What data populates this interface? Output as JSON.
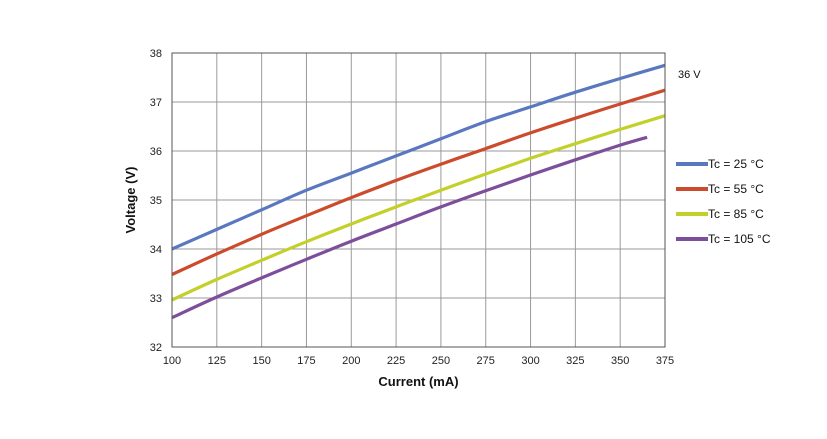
{
  "chart_data": {
    "type": "line",
    "title": "",
    "xlabel": "Current (mA)",
    "ylabel": "Voltage (V)",
    "xlim": [
      100,
      375
    ],
    "ylim": [
      32,
      38
    ],
    "xticks": [
      100,
      125,
      150,
      175,
      200,
      225,
      250,
      275,
      300,
      325,
      350,
      375
    ],
    "yticks": [
      32,
      33,
      34,
      35,
      36,
      37,
      38
    ],
    "grid": true,
    "legend_position": "right",
    "annotation": "36 V",
    "series": [
      {
        "name": "Tc = 25 °C",
        "color": "#5a78bf",
        "x": [
          100,
          125,
          150,
          175,
          200,
          225,
          250,
          275,
          300,
          325,
          350,
          375
        ],
        "y": [
          34.0,
          34.4,
          34.8,
          35.2,
          35.55,
          35.9,
          36.25,
          36.6,
          36.9,
          37.2,
          37.48,
          37.75
        ]
      },
      {
        "name": "Tc = 55 °C",
        "color": "#cc4b2c",
        "x": [
          100,
          125,
          150,
          175,
          200,
          225,
          250,
          275,
          300,
          325,
          350,
          375
        ],
        "y": [
          33.48,
          33.9,
          34.3,
          34.68,
          35.05,
          35.4,
          35.73,
          36.05,
          36.37,
          36.67,
          36.96,
          37.24
        ]
      },
      {
        "name": "Tc = 85 °C",
        "color": "#c3d02a",
        "x": [
          100,
          125,
          150,
          175,
          200,
          225,
          250,
          275,
          300,
          325,
          350,
          375
        ],
        "y": [
          32.96,
          33.38,
          33.77,
          34.15,
          34.51,
          34.86,
          35.2,
          35.53,
          35.85,
          36.15,
          36.44,
          36.72
        ]
      },
      {
        "name": "Tc = 105 °C",
        "color": "#7d4f9a",
        "x": [
          100,
          125,
          150,
          175,
          200,
          225,
          250,
          275,
          300,
          325,
          350,
          365
        ],
        "y": [
          32.6,
          33.02,
          33.41,
          33.79,
          34.16,
          34.51,
          34.86,
          35.19,
          35.51,
          35.82,
          36.12,
          36.28
        ]
      }
    ]
  }
}
